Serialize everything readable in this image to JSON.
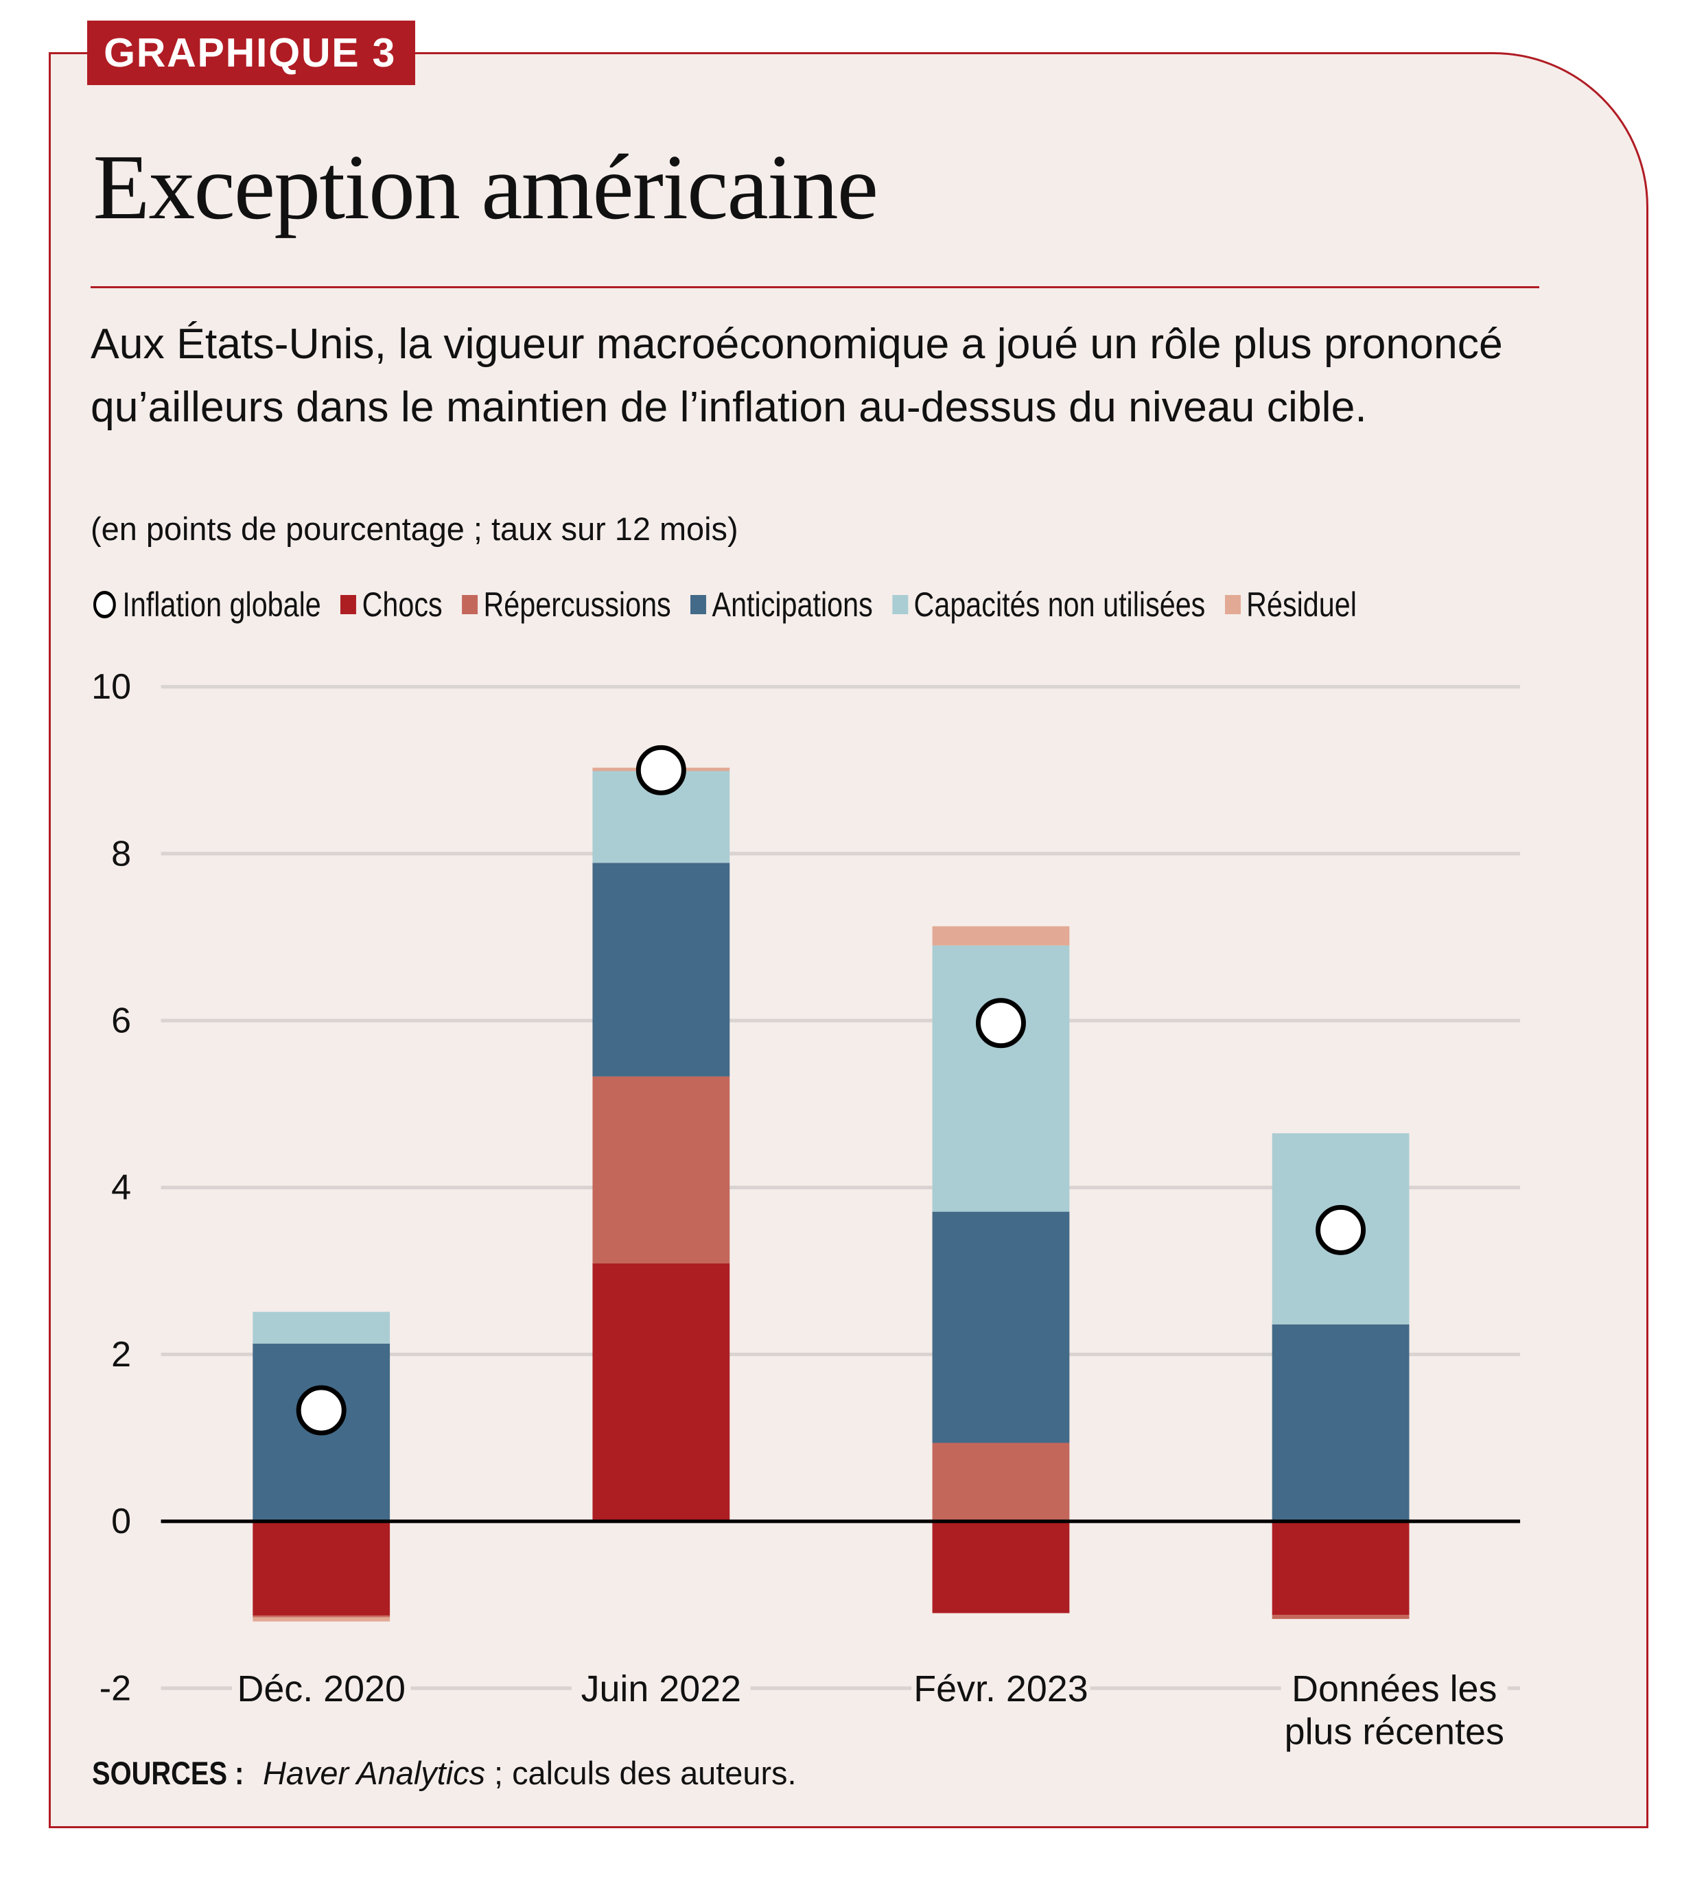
{
  "tag": "GRAPHIQUE 3",
  "title": "Exception américaine",
  "subtitle": "Aux États-Unis, la vigueur macroéconomique a joué un rôle plus prononcé qu’ailleurs dans le maintien de l’inflation au-dessus du niveau cible.",
  "unit": "(en points de pourcentage ; taux sur 12 mois)",
  "sources": {
    "label": "SOURCES :",
    "italic": "Haver Analytics",
    "rest": " ; calculs des auteurs."
  },
  "chart_data": {
    "type": "bar",
    "stacked": true,
    "categories": [
      "Déc. 2020",
      "Juin 2022",
      "Févr. 2023",
      "Données les plus récentes"
    ],
    "ylim": [
      -2,
      10
    ],
    "yticks": [
      -2,
      0,
      2,
      4,
      6,
      8,
      10
    ],
    "grid": true,
    "legend_position": "top",
    "series": [
      {
        "name": "Chocs",
        "color": "#ad1e23",
        "values": [
          -1.13,
          3.09,
          -1.1,
          -1.12
        ]
      },
      {
        "name": "Répercussions",
        "color": "#c4675b",
        "values": [
          -0.02,
          2.24,
          0.94,
          -0.05
        ]
      },
      {
        "name": "Anticipations",
        "color": "#436a88",
        "values": [
          2.13,
          2.56,
          2.77,
          2.36
        ]
      },
      {
        "name": "Capacités non utilisées",
        "color": "#aacdd3",
        "values": [
          0.38,
          1.1,
          3.19,
          2.29
        ]
      },
      {
        "name": "Résiduel",
        "color": "#e2a994",
        "values": [
          -0.05,
          0.04,
          0.23,
          0
        ]
      }
    ],
    "line_series": {
      "name": "Inflation globale",
      "marker": "circle",
      "values": [
        1.33,
        9.0,
        5.97,
        3.49
      ]
    }
  }
}
